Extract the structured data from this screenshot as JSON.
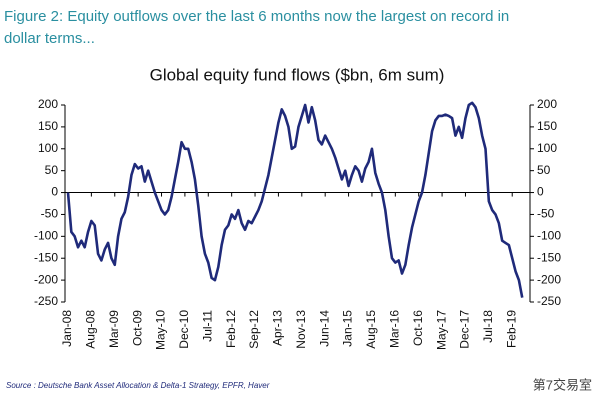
{
  "header": {
    "title_line1": "Figure 2: Equity outflows over the last 6 months now the largest on record in",
    "title_line2": "dollar terms..."
  },
  "chart_data": {
    "type": "line",
    "title": "Global equity fund flows ($bn, 6m sum)",
    "categories": [
      "Jan-08",
      null,
      null,
      null,
      null,
      null,
      null,
      "Aug-08",
      null,
      null,
      null,
      null,
      null,
      null,
      "Mar-09",
      null,
      null,
      null,
      null,
      null,
      null,
      "Oct-09",
      null,
      null,
      null,
      null,
      null,
      null,
      "May-10",
      null,
      null,
      null,
      null,
      null,
      null,
      "Dec-10",
      null,
      null,
      null,
      null,
      null,
      null,
      "Jul-11",
      null,
      null,
      null,
      null,
      null,
      null,
      "Feb-12",
      null,
      null,
      null,
      null,
      null,
      null,
      "Sep-12",
      null,
      null,
      null,
      null,
      null,
      null,
      "Apr-13",
      null,
      null,
      null,
      null,
      null,
      null,
      "Nov-13",
      null,
      null,
      null,
      null,
      null,
      null,
      "Jun-14",
      null,
      null,
      null,
      null,
      null,
      null,
      "Jan-15",
      null,
      null,
      null,
      null,
      null,
      null,
      "Aug-15",
      null,
      null,
      null,
      null,
      null,
      null,
      "Mar-16",
      null,
      null,
      null,
      null,
      null,
      null,
      "Oct-16",
      null,
      null,
      null,
      null,
      null,
      null,
      "May-17",
      null,
      null,
      null,
      null,
      null,
      null,
      "Dec-17",
      null,
      null,
      null,
      null,
      null,
      null,
      "Jul-18",
      null,
      null,
      null,
      null,
      null,
      null,
      "Feb-19",
      null,
      null,
      null
    ],
    "series": [
      {
        "color": "#1f2a7a",
        "values": [
          0,
          -90,
          -100,
          -125,
          -110,
          -125,
          -90,
          -65,
          -75,
          -140,
          -155,
          -130,
          -115,
          -150,
          -165,
          -100,
          -60,
          -45,
          -10,
          40,
          65,
          55,
          60,
          25,
          50,
          25,
          0,
          -20,
          -40,
          -50,
          -40,
          -10,
          30,
          70,
          115,
          100,
          100,
          70,
          30,
          -30,
          -100,
          -140,
          -160,
          -195,
          -200,
          -170,
          -120,
          -85,
          -75,
          -50,
          -60,
          -40,
          -70,
          -85,
          -65,
          -70,
          -55,
          -40,
          -20,
          10,
          40,
          80,
          120,
          160,
          190,
          175,
          150,
          100,
          105,
          150,
          175,
          200,
          160,
          195,
          165,
          120,
          110,
          130,
          115,
          100,
          80,
          55,
          30,
          50,
          15,
          40,
          60,
          50,
          25,
          55,
          70,
          100,
          45,
          20,
          0,
          -40,
          -100,
          -150,
          -160,
          -155,
          -185,
          -165,
          -120,
          -80,
          -50,
          -20,
          0,
          40,
          90,
          140,
          165,
          175,
          175,
          178,
          175,
          170,
          130,
          150,
          125,
          170,
          200,
          205,
          195,
          170,
          130,
          100,
          -20,
          -40,
          -50,
          -70,
          -110,
          -115,
          -120,
          -150,
          -180,
          -200,
          -240
        ]
      }
    ],
    "ylim": [
      -250,
      200
    ],
    "yticks": [
      -250,
      -200,
      -150,
      -100,
      -50,
      0,
      50,
      100,
      150,
      200
    ],
    "y2lim": [
      -250,
      200
    ],
    "y2ticks": [
      -250,
      -200,
      -150,
      -100,
      -50,
      0,
      50,
      100,
      150,
      200
    ],
    "source": "Source : Deutsche Bank Asset Allocation & Delta-1 Strategy, EPFR, Haver",
    "watermark": "第7交易室"
  }
}
